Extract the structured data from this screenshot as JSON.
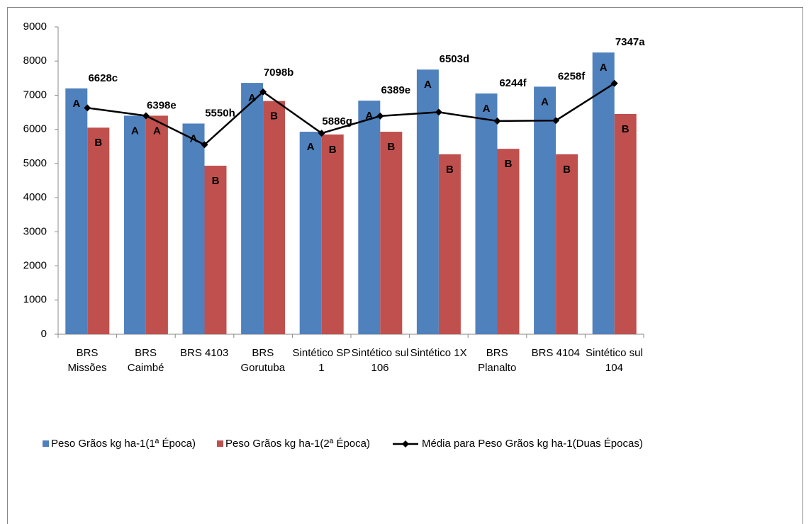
{
  "chart_data": {
    "type": "bar",
    "categories": [
      "BRS Missões",
      "BRS Caimbé",
      "BRS 4103",
      "BRS Gorutuba",
      "Sintético SP 1",
      "Sintético sul 106",
      "Sintético 1X",
      "BRS Planalto",
      "BRS 4104",
      "Sintético sul 104"
    ],
    "series": [
      {
        "name": "Peso Grãos kg ha-1(1ª Época)",
        "type": "bar",
        "color": "#4f81bd",
        "values": [
          7200,
          6400,
          6170,
          7360,
          5930,
          6840,
          7750,
          7050,
          7250,
          8250
        ],
        "letters": [
          "A",
          "A",
          "A",
          "A",
          "A",
          "A",
          "A",
          "A",
          "A",
          "A"
        ]
      },
      {
        "name": "Peso Grãos kg ha-1(2ª Época)",
        "type": "bar",
        "color": "#c0504d",
        "values": [
          6050,
          6400,
          4935,
          6830,
          5850,
          5930,
          5270,
          5430,
          5270,
          6450
        ],
        "letters": [
          "B",
          "A",
          "B",
          "B",
          "B",
          "B",
          "B",
          "B",
          "B",
          "B"
        ]
      },
      {
        "name": "Média para Peso Grãos kg ha-1(Duas Épocas)",
        "type": "line",
        "color": "#000000",
        "values": [
          6628,
          6398,
          5550,
          7098,
          5886,
          6389,
          6503,
          6244,
          6258,
          7347
        ],
        "value_labels": [
          "6628c",
          "6398e",
          "5550h",
          "7098b",
          "5886g",
          "6389e",
          "6503d",
          "6244f",
          "6258f",
          "7347a"
        ]
      }
    ],
    "ylim": [
      0,
      9000
    ],
    "yticks": [
      0,
      1000,
      2000,
      3000,
      4000,
      5000,
      6000,
      7000,
      8000,
      9000
    ],
    "legend": "bottom"
  }
}
